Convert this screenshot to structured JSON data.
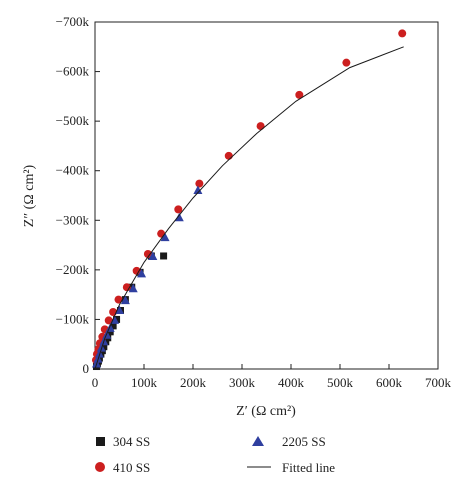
{
  "chart_data": {
    "type": "scatter",
    "xlabel": "Z′ (Ω cm²)",
    "ylabel": "Z″ (Ω cm²)",
    "xlim": [
      0,
      700000
    ],
    "ylim": [
      0,
      -700000
    ],
    "x_ticks": [
      0,
      100000,
      200000,
      300000,
      400000,
      500000,
      600000,
      700000
    ],
    "x_tick_labels": [
      "0",
      "100k",
      "200k",
      "300k",
      "400k",
      "500k",
      "600k",
      "700k"
    ],
    "y_ticks": [
      0,
      -100000,
      -200000,
      -300000,
      -400000,
      -500000,
      -600000,
      -700000
    ],
    "y_tick_labels": [
      "0",
      "−100k",
      "−200k",
      "−300k",
      "−400k",
      "−500k",
      "−600k",
      "−700k"
    ],
    "grid": false,
    "legend_placement": "bottom",
    "series": [
      {
        "name": "304 SS",
        "marker": "square",
        "color": "#1a1a1a",
        "points": [
          [
            3000,
            -5000
          ],
          [
            5000,
            -10000
          ],
          [
            7000,
            -16000
          ],
          [
            9000,
            -22000
          ],
          [
            12000,
            -30000
          ],
          [
            15000,
            -37000
          ],
          [
            18000,
            -45000
          ],
          [
            22000,
            -55000
          ],
          [
            26000,
            -63000
          ],
          [
            31000,
            -75000
          ],
          [
            37000,
            -87000
          ],
          [
            44000,
            -100000
          ],
          [
            52000,
            -118000
          ],
          [
            62000,
            -140000
          ],
          [
            75000,
            -165000
          ],
          [
            92000,
            -195000
          ],
          [
            115000,
            -228000
          ],
          [
            140000,
            -228000
          ]
        ]
      },
      {
        "name": "410 SS",
        "marker": "circle",
        "color": "#cc1f1f",
        "points": [
          [
            2000,
            -18000
          ],
          [
            4000,
            -30000
          ],
          [
            7000,
            -40000
          ],
          [
            10000,
            -52000
          ],
          [
            15000,
            -65000
          ],
          [
            20000,
            -80000
          ],
          [
            28000,
            -98000
          ],
          [
            37000,
            -115000
          ],
          [
            48000,
            -140000
          ],
          [
            65000,
            -165000
          ],
          [
            85000,
            -198000
          ],
          [
            108000,
            -232000
          ],
          [
            135000,
            -273000
          ],
          [
            170000,
            -322000
          ],
          [
            213000,
            -374000
          ],
          [
            273000,
            -430000
          ],
          [
            338000,
            -490000
          ],
          [
            417000,
            -553000
          ],
          [
            513000,
            -618000
          ],
          [
            627000,
            -677000
          ]
        ]
      },
      {
        "name": "2205 SS",
        "marker": "triangle",
        "color": "#2f3f9f",
        "points": [
          [
            3000,
            -10000
          ],
          [
            6000,
            -20000
          ],
          [
            9000,
            -30000
          ],
          [
            13000,
            -42000
          ],
          [
            18000,
            -55000
          ],
          [
            24000,
            -68000
          ],
          [
            31000,
            -82000
          ],
          [
            40000,
            -98000
          ],
          [
            50000,
            -118000
          ],
          [
            62000,
            -138000
          ],
          [
            78000,
            -162000
          ],
          [
            95000,
            -192000
          ],
          [
            118000,
            -227000
          ],
          [
            143000,
            -265000
          ],
          [
            172000,
            -305000
          ],
          [
            210000,
            -360000
          ]
        ]
      },
      {
        "name": "Fitted line",
        "marker": "line",
        "color": "#1a1a1a",
        "points": [
          [
            0,
            0
          ],
          [
            20000,
            -62000
          ],
          [
            50000,
            -130000
          ],
          [
            100000,
            -215000
          ],
          [
            150000,
            -283000
          ],
          [
            200000,
            -345000
          ],
          [
            260000,
            -410000
          ],
          [
            330000,
            -475000
          ],
          [
            410000,
            -540000
          ],
          [
            520000,
            -608000
          ],
          [
            630000,
            -650000
          ]
        ]
      }
    ]
  }
}
